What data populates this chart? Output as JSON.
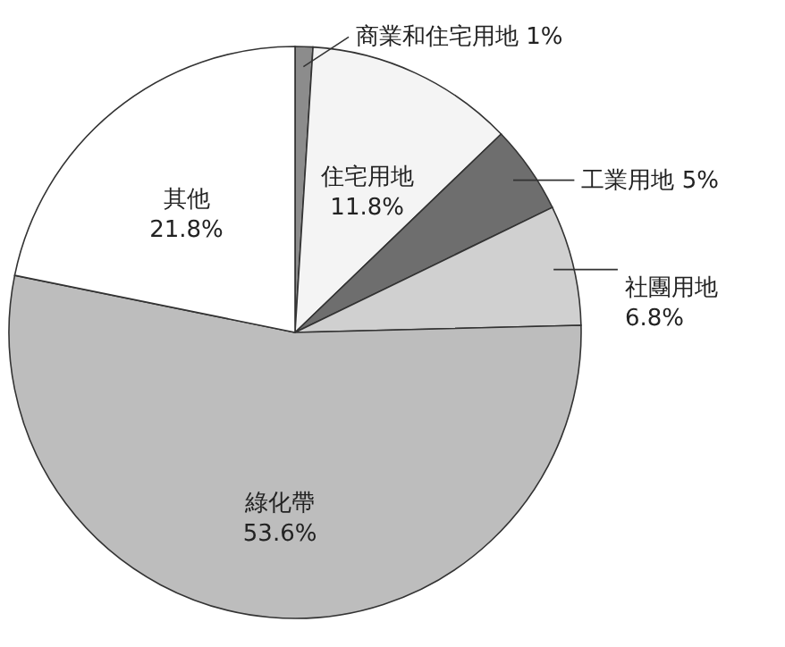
{
  "chart_data": {
    "type": "pie",
    "categories": [
      "商業和住宅用地",
      "住宅用地",
      "工業用地",
      "社團用地",
      "綠化帶",
      "其他"
    ],
    "values": [
      1,
      11.8,
      5,
      6.8,
      53.6,
      21.8
    ],
    "value_labels": [
      "1%",
      "11.8%",
      "5%",
      "6.8%",
      "53.6%",
      "21.8%"
    ],
    "colors": [
      "#8c8c8c",
      "#f4f4f4",
      "#6e6e6e",
      "#d0d0d0",
      "#bdbdbd",
      "#ffffff"
    ]
  }
}
